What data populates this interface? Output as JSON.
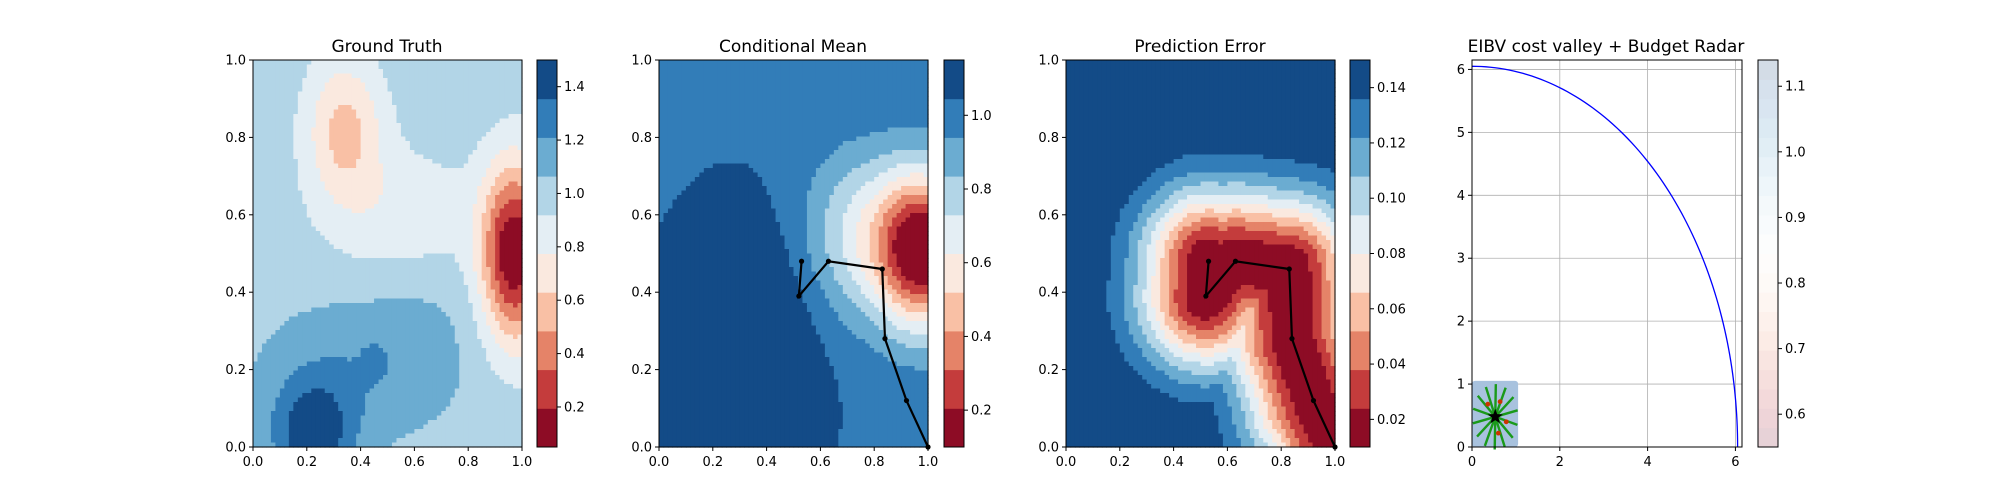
{
  "figure": {
    "background": "#ffffff"
  },
  "chart_data": [
    {
      "type": "heatmap",
      "title": "Ground Truth",
      "xlim": [
        0,
        1
      ],
      "ylim": [
        0,
        1
      ],
      "xticks": [
        "0.0",
        "0.2",
        "0.4",
        "0.6",
        "0.8",
        "1.0"
      ],
      "yticks": [
        "0.0",
        "0.2",
        "0.4",
        "0.6",
        "0.8",
        "1.0"
      ],
      "colormap": "RdBu",
      "colorbar": {
        "min": 0.05,
        "max": 1.5,
        "levels": 10,
        "ticks": [
          {
            "v": 0.2,
            "label": "0.2"
          },
          {
            "v": 0.4,
            "label": "0.4"
          },
          {
            "v": 0.6,
            "label": "0.6"
          },
          {
            "v": 0.8,
            "label": "0.8"
          },
          {
            "v": 1.0,
            "label": "1.0"
          },
          {
            "v": 1.2,
            "label": "1.2"
          },
          {
            "v": 1.4,
            "label": "1.4"
          }
        ]
      },
      "field": {
        "base": 1.0,
        "components": [
          {
            "cx": 0.97,
            "cy": 0.5,
            "sx": 0.085,
            "sy": 0.16,
            "amp": -0.95
          },
          {
            "cx": 0.34,
            "cy": 0.82,
            "sx": 0.1,
            "sy": 0.13,
            "amp": -0.42
          },
          {
            "cx": 0.55,
            "cy": 0.6,
            "sx": 0.2,
            "sy": 0.12,
            "amp": -0.18
          },
          {
            "cx": 0.22,
            "cy": 0.03,
            "sx": 0.11,
            "sy": 0.1,
            "amp": 0.45
          },
          {
            "cx": 0.4,
            "cy": 0.2,
            "sx": 0.25,
            "sy": 0.13,
            "amp": 0.18
          },
          {
            "cx": 0.45,
            "cy": 0.22,
            "sx": 0.03,
            "sy": 0.03,
            "amp": 0.1
          },
          {
            "cx": 0.62,
            "cy": 0.35,
            "sx": 0.15,
            "sy": 0.12,
            "amp": 0.05
          }
        ]
      }
    },
    {
      "type": "heatmap",
      "title": "Conditional Mean",
      "xlim": [
        0,
        1
      ],
      "ylim": [
        0,
        1
      ],
      "xticks": [
        "0.0",
        "0.2",
        "0.4",
        "0.6",
        "0.8",
        "1.0"
      ],
      "yticks": [
        "0.0",
        "0.2",
        "0.4",
        "0.6",
        "0.8",
        "1.0"
      ],
      "colormap": "RdBu",
      "colorbar": {
        "min": 0.1,
        "max": 1.15,
        "levels": 10,
        "ticks": [
          {
            "v": 0.2,
            "label": "0.2"
          },
          {
            "v": 0.4,
            "label": "0.4"
          },
          {
            "v": 0.6,
            "label": "0.6"
          },
          {
            "v": 0.8,
            "label": "0.8"
          },
          {
            "v": 1.0,
            "label": "1.0"
          }
        ]
      },
      "field": {
        "base": 1.03,
        "components": [
          {
            "cx": 0.98,
            "cy": 0.51,
            "sx": 0.12,
            "sy": 0.14,
            "amp": -0.95
          },
          {
            "cx": 0.74,
            "cy": 0.55,
            "sx": 0.14,
            "sy": 0.15,
            "amp": -0.3
          },
          {
            "cx": 0.3,
            "cy": 0.22,
            "sx": 0.17,
            "sy": 0.22,
            "amp": 0.25
          }
        ]
      },
      "path": {
        "x": [
          0.53,
          0.52,
          0.63,
          0.83,
          0.84,
          0.92,
          1.0
        ],
        "y": [
          0.48,
          0.39,
          0.48,
          0.46,
          0.28,
          0.12,
          0.0
        ]
      }
    },
    {
      "type": "heatmap",
      "title": "Prediction Error",
      "xlim": [
        0,
        1
      ],
      "ylim": [
        0,
        1
      ],
      "xticks": [
        "0.0",
        "0.2",
        "0.4",
        "0.6",
        "0.8",
        "1.0"
      ],
      "yticks": [
        "0.0",
        "0.2",
        "0.4",
        "0.6",
        "0.8",
        "1.0"
      ],
      "colormap": "RdBu",
      "colorbar": {
        "min": 0.01,
        "max": 0.15,
        "levels": 10,
        "ticks": [
          {
            "v": 0.02,
            "label": "0.02"
          },
          {
            "v": 0.04,
            "label": "0.04"
          },
          {
            "v": 0.06,
            "label": "0.06"
          },
          {
            "v": 0.08,
            "label": "0.08"
          },
          {
            "v": 0.1,
            "label": "0.10"
          },
          {
            "v": 0.12,
            "label": "0.12"
          },
          {
            "v": 0.14,
            "label": "0.14"
          }
        ]
      },
      "field": {
        "base": 0.15,
        "mode": "path-min",
        "sigma_x": 0.17,
        "sigma_y": 0.13,
        "amp": 0.14
      },
      "path": {
        "x": [
          0.53,
          0.52,
          0.63,
          0.83,
          0.84,
          0.92,
          1.0
        ],
        "y": [
          0.48,
          0.39,
          0.48,
          0.46,
          0.28,
          0.12,
          0.0
        ]
      }
    },
    {
      "type": "line",
      "title": "EIBV cost valley + Budget Radar",
      "xlim": [
        0,
        6.15
      ],
      "ylim": [
        0,
        6.15
      ],
      "xticks": [
        {
          "v": 0,
          "label": "0"
        },
        {
          "v": 2,
          "label": "2"
        },
        {
          "v": 4,
          "label": "4"
        },
        {
          "v": 6,
          "label": "6"
        }
      ],
      "yticks": [
        {
          "v": 0,
          "label": "0"
        },
        {
          "v": 1,
          "label": "1"
        },
        {
          "v": 2,
          "label": "2"
        },
        {
          "v": 3,
          "label": "3"
        },
        {
          "v": 4,
          "label": "4"
        },
        {
          "v": 5,
          "label": "5"
        },
        {
          "v": 6,
          "label": "6"
        }
      ],
      "grid": true,
      "radar": {
        "cx": 0,
        "cy": 0,
        "radius": 6.05,
        "color": "#0000ff"
      },
      "cost_valley_patch": {
        "x0": 0,
        "x1": 1.05,
        "y0": 0,
        "y1": 1.05,
        "color": "#e8edf5"
      },
      "candidates": {
        "x": 0.53,
        "y": 0.48,
        "count": 14,
        "radius": 0.52,
        "color": "#1a9a1a"
      },
      "candidate_dots": {
        "x": [
          0.36,
          0.64,
          0.78,
          0.6
        ],
        "y": [
          0.68,
          0.72,
          0.4,
          0.22
        ],
        "color": "#cc3300"
      },
      "marker": {
        "x": 0.53,
        "y": 0.48,
        "symbol": "star",
        "color": "#000000"
      },
      "colormap": "RdBu",
      "colorbar": {
        "min": 0.55,
        "max": 1.14,
        "levels": 20,
        "pale": true,
        "ticks": [
          {
            "v": 0.6,
            "label": "0.6"
          },
          {
            "v": 0.7,
            "label": "0.7"
          },
          {
            "v": 0.8,
            "label": "0.8"
          },
          {
            "v": 0.9,
            "label": "0.9"
          },
          {
            "v": 1.0,
            "label": "1.0"
          },
          {
            "v": 1.1,
            "label": "1.1"
          }
        ]
      }
    }
  ]
}
